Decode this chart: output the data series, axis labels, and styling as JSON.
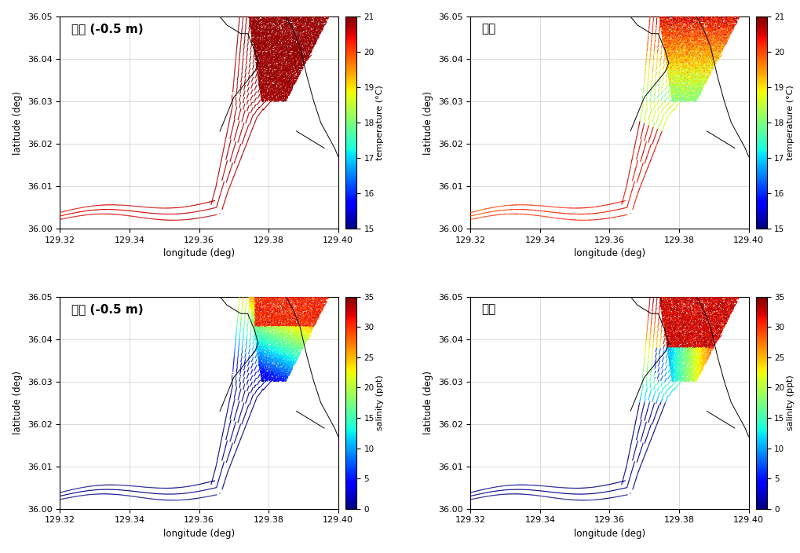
{
  "lon_min": 129.32,
  "lon_max": 129.4,
  "lat_min": 36.0,
  "lat_max": 36.05,
  "lon_ticks": [
    129.32,
    129.34,
    129.36,
    129.38,
    129.4
  ],
  "lat_ticks": [
    36.0,
    36.01,
    36.02,
    36.03,
    36.04,
    36.05
  ],
  "xlabel": "longitude (deg)",
  "ylabel": "latitude (deg)",
  "temp_label": "temperature (°C)",
  "sal_label": "salinity (ppt)",
  "temp_min": 15,
  "temp_max": 21,
  "sal_min": 0,
  "sal_max": 35,
  "label_surface": "표층 (-0.5 m)",
  "label_bottom": "바닥",
  "temp_ticks": [
    15,
    16,
    17,
    18,
    19,
    20,
    21
  ],
  "sal_ticks": [
    0,
    5,
    10,
    15,
    20,
    25,
    30,
    35
  ],
  "background_color": "#ffffff",
  "grid_color": "#cccccc",
  "coastline_left": {
    "x": [
      129.366,
      129.368,
      129.37,
      129.372,
      129.374,
      129.375,
      129.376,
      129.377,
      129.376,
      129.374,
      129.372,
      129.37,
      129.369,
      129.368,
      129.367
    ],
    "y": [
      36.05,
      36.048,
      36.047,
      36.046,
      36.046,
      36.045,
      36.043,
      36.04,
      36.038,
      36.036,
      36.034,
      36.032,
      36.03,
      36.028,
      36.025
    ]
  },
  "coastline_right": {
    "x": [
      129.383,
      129.384,
      129.386,
      129.388,
      129.39,
      129.392,
      129.394,
      129.396,
      129.398,
      129.4
    ],
    "y": [
      36.05,
      36.048,
      36.046,
      36.042,
      36.036,
      36.03,
      36.025,
      36.022,
      36.02,
      36.018
    ]
  },
  "coastline_right2": {
    "x": [
      129.388,
      129.39,
      129.392,
      129.394,
      129.396,
      129.4
    ],
    "y": [
      36.022,
      36.021,
      36.02,
      36.019,
      36.018,
      36.016
    ]
  }
}
